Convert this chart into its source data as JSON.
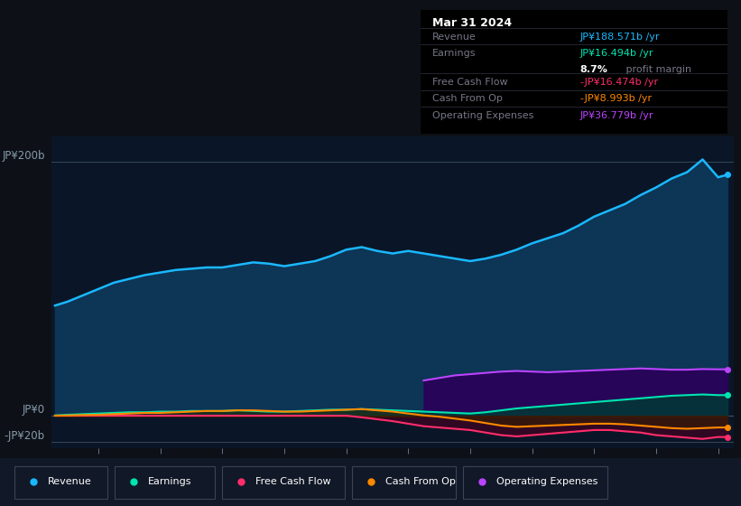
{
  "background_color": "#0d1117",
  "plot_bg_color": "#0d1b2a",
  "chart_bg": "#0a1628",
  "title_box": {
    "date": "Mar 31 2024",
    "revenue_label": "Revenue",
    "revenue_value": "JP¥188.571b /yr",
    "revenue_color": "#1ab8ff",
    "earnings_label": "Earnings",
    "earnings_value": "JP¥16.494b /yr",
    "earnings_color": "#00e5b0",
    "margin_value": "8.7%",
    "margin_label": " profit margin",
    "fcf_label": "Free Cash Flow",
    "fcf_value": "-JP¥16.474b /yr",
    "fcf_color": "#ff2d6b",
    "cashop_label": "Cash From Op",
    "cashop_value": "-JP¥8.993b /yr",
    "cashop_color": "#ff8800",
    "opex_label": "Operating Expenses",
    "opex_value": "JP¥36.779b /yr",
    "opex_color": "#bb44ff"
  },
  "ylabel_top": "JP¥200b",
  "ylabel_zero": "JP¥0",
  "ylabel_neg": "-JP¥20b",
  "years": [
    2013.3,
    2013.5,
    2013.75,
    2014.0,
    2014.25,
    2014.5,
    2014.75,
    2015.0,
    2015.25,
    2015.5,
    2015.75,
    2016.0,
    2016.25,
    2016.5,
    2016.75,
    2017.0,
    2017.25,
    2017.5,
    2017.75,
    2018.0,
    2018.25,
    2018.5,
    2018.75,
    2019.0,
    2019.25,
    2019.5,
    2019.75,
    2020.0,
    2020.25,
    2020.5,
    2020.75,
    2021.0,
    2021.25,
    2021.5,
    2021.75,
    2022.0,
    2022.25,
    2022.5,
    2022.75,
    2023.0,
    2023.25,
    2023.5,
    2023.75,
    2024.0,
    2024.15
  ],
  "revenue": [
    87,
    90,
    95,
    100,
    105,
    108,
    111,
    113,
    115,
    116,
    117,
    117,
    119,
    121,
    120,
    118,
    120,
    122,
    126,
    131,
    133,
    130,
    128,
    130,
    128,
    126,
    124,
    122,
    124,
    127,
    131,
    136,
    140,
    144,
    150,
    157,
    162,
    167,
    174,
    180,
    187,
    192,
    202,
    188,
    190
  ],
  "earnings": [
    0.5,
    1,
    1.5,
    2,
    2.5,
    3,
    3,
    3.5,
    3.5,
    4,
    4,
    4,
    4.5,
    4,
    3.5,
    3.5,
    4,
    4.5,
    5,
    5,
    5.5,
    5,
    4.5,
    4,
    3.5,
    3,
    2.5,
    2,
    3,
    4.5,
    6,
    7,
    8,
    9,
    10,
    11,
    12,
    13,
    14,
    15,
    16,
    16.5,
    17,
    16.5,
    16.5
  ],
  "free_cash_flow": [
    0.3,
    0.3,
    0.3,
    0.3,
    0.3,
    0.3,
    0.3,
    0.3,
    0.3,
    0.3,
    0.3,
    0.3,
    0.3,
    0.3,
    0.3,
    0.3,
    0.3,
    0.3,
    0.3,
    0.3,
    -1,
    -2.5,
    -4,
    -6,
    -8,
    -9,
    -10,
    -11,
    -13,
    -15,
    -16,
    -15,
    -14,
    -13,
    -12,
    -11,
    -11,
    -12,
    -13,
    -15,
    -16,
    -17,
    -18,
    -16.5,
    -16.5
  ],
  "cash_from_op": [
    0.3,
    0.5,
    0.8,
    1.0,
    1.5,
    2.0,
    2.5,
    2.5,
    3.0,
    3.5,
    4.0,
    4.0,
    4.5,
    4.5,
    4.0,
    3.5,
    3.5,
    4.0,
    4.5,
    5.0,
    5.5,
    4.5,
    3.5,
    2.0,
    0.5,
    -0.5,
    -2.0,
    -3.5,
    -5.5,
    -7.5,
    -8.5,
    -8.0,
    -7.5,
    -7.0,
    -6.5,
    -6.0,
    -6.0,
    -6.5,
    -7.5,
    -8.5,
    -9.5,
    -10.0,
    -9.5,
    -9.0,
    -9.0
  ],
  "operating_expenses": [
    0,
    0,
    0,
    0,
    0,
    0,
    0,
    0,
    0,
    0,
    0,
    0,
    0,
    0,
    0,
    0,
    0,
    0,
    0,
    0,
    0,
    0,
    0,
    0,
    28,
    30,
    32,
    33,
    34,
    35,
    35.5,
    35,
    34.5,
    35,
    35.5,
    36,
    36.5,
    37,
    37.5,
    37,
    36.5,
    36.5,
    37,
    36.8,
    36.8
  ],
  "revenue_color": "#1ab8ff",
  "revenue_fill": "#0d3555",
  "earnings_color": "#00e5b0",
  "earnings_fill_pos": "#003d33",
  "fcf_color": "#ff2d6b",
  "fcf_fill": "#4a0020",
  "cashop_color": "#ff8800",
  "cashop_fill": "#3a2000",
  "opex_color": "#bb44ff",
  "opex_fill": "#2a005a",
  "ylim": [
    -25,
    220
  ],
  "xlim": [
    2013.25,
    2024.25
  ],
  "xtick_years": [
    2014,
    2015,
    2016,
    2017,
    2018,
    2019,
    2020,
    2021,
    2022,
    2023,
    2024
  ],
  "legend_items": [
    {
      "label": "Revenue",
      "color": "#1ab8ff"
    },
    {
      "label": "Earnings",
      "color": "#00e5b0"
    },
    {
      "label": "Free Cash Flow",
      "color": "#ff2d6b"
    },
    {
      "label": "Cash From Op",
      "color": "#ff8800"
    },
    {
      "label": "Operating Expenses",
      "color": "#bb44ff"
    }
  ]
}
